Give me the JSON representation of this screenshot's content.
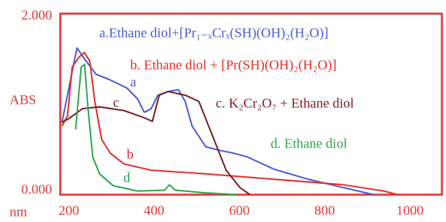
{
  "chart_data": {
    "type": "line",
    "ylabel": "ABS",
    "xlabel": "nm",
    "xlim": [
      180,
      1075
    ],
    "ylim": [
      0,
      2
    ],
    "xticks": [
      200,
      400,
      600,
      800,
      1000
    ],
    "yticks": [
      {
        "value": 0,
        "label": "0.000"
      },
      {
        "value": 2,
        "label": "2.000"
      }
    ],
    "grid": false,
    "series": [
      {
        "name": "a.Ethane diol+[Pr₁₋ₓCrₓ(SH)(OH)₂(H₂O)]",
        "curve_label": "a",
        "color": "#4a5cd4",
        "x": [
          184,
          219,
          240,
          264,
          296,
          336,
          361,
          377,
          393,
          409,
          433,
          457,
          473,
          489,
          521,
          553,
          585,
          617,
          682,
          762,
          843,
          915
        ],
        "values": [
          0.8,
          1.62,
          1.48,
          1.33,
          1.27,
          1.18,
          1.06,
          0.91,
          0.95,
          1.1,
          1.14,
          1.16,
          1.03,
          0.76,
          0.53,
          0.49,
          0.46,
          0.42,
          0.28,
          0.17,
          0.08,
          0
        ]
      },
      {
        "name": "b. Ethane diol + [Pr(SH)(OH)₂(H₂O)]",
        "curve_label": "b",
        "color": "#e82c2c",
        "x": [
          184,
          197,
          208,
          224,
          236,
          249,
          261,
          277,
          297,
          329,
          393,
          521,
          682,
          843,
          939,
          971
        ],
        "values": [
          0.76,
          0.87,
          1.41,
          1.52,
          1.57,
          1.48,
          1.03,
          0.61,
          0.46,
          0.34,
          0.27,
          0.23,
          0.17,
          0.11,
          0.04,
          0
        ]
      },
      {
        "name": "c. K₂Cr₂O₇ + Ethane diol",
        "curve_label": "c",
        "color": "#7a1e22",
        "x": [
          184,
          200,
          232,
          272,
          329,
          377,
          396,
          412,
          433,
          473,
          505,
          537,
          569,
          601,
          625
        ],
        "values": [
          0.8,
          0.84,
          0.95,
          0.97,
          0.93,
          0.85,
          0.81,
          1.1,
          1.14,
          1.1,
          1.03,
          0.65,
          0.27,
          0.08,
          0
        ]
      },
      {
        "name": "d. Ethane diol",
        "curve_label": "d",
        "color": "#2ca84c",
        "x": [
          216,
          229,
          237,
          245,
          256,
          272,
          304,
          361,
          425,
          436,
          449,
          521,
          593
        ],
        "values": [
          0.72,
          1.41,
          1.44,
          0.95,
          0.42,
          0.23,
          0.1,
          0.04,
          0.05,
          0.11,
          0.05,
          0.02,
          0
        ]
      }
    ]
  }
}
